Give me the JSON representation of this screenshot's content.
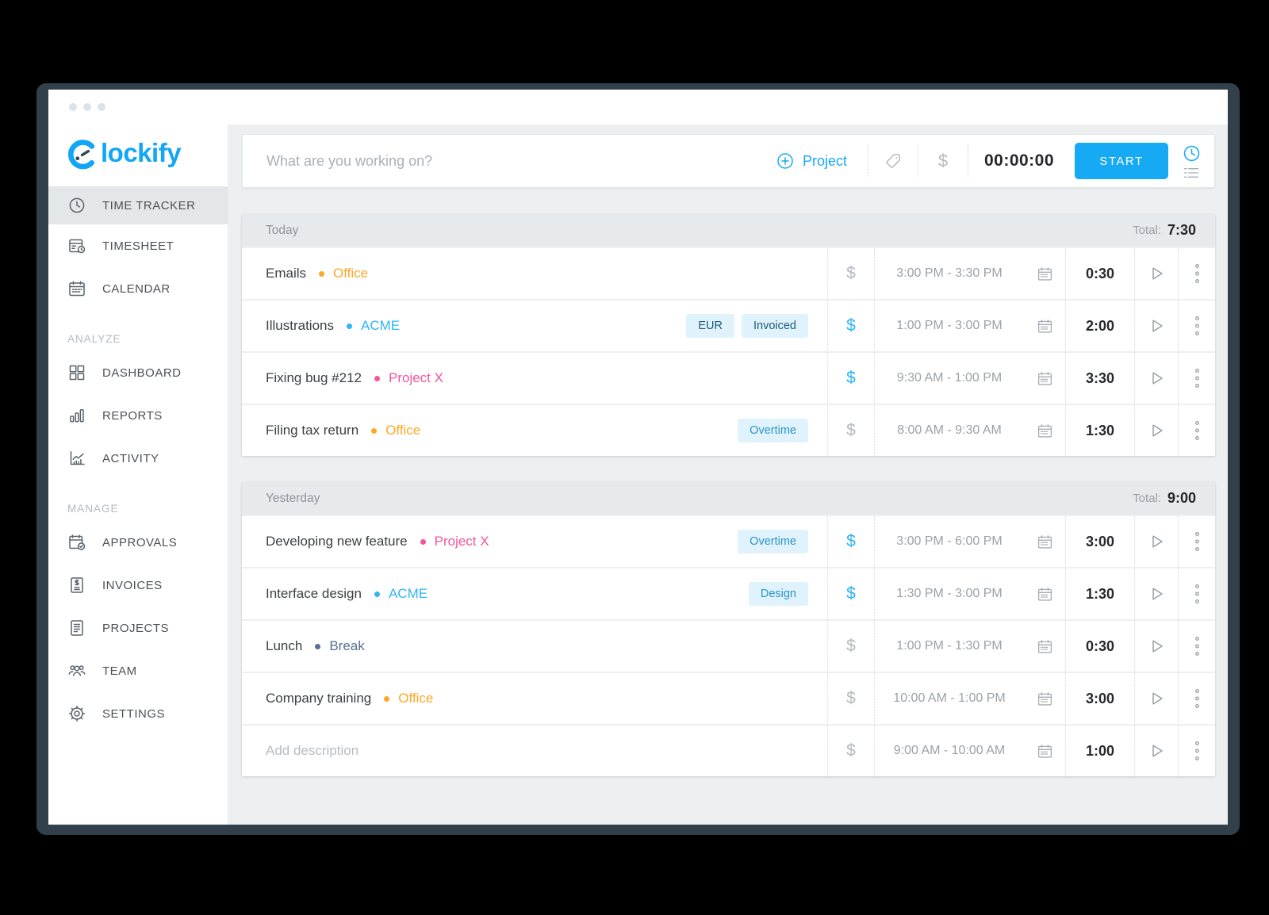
{
  "window": {
    "title_dots_count": 3
  },
  "sidebar": {
    "logo_text": "lockify",
    "primary_items": [
      {
        "icon": "clock-icon",
        "label": "TIME TRACKER",
        "active": true
      },
      {
        "icon": "timesheet-icon",
        "label": "TIMESHEET",
        "active": false
      },
      {
        "icon": "calendar-icon",
        "label": "CALENDAR",
        "active": false
      }
    ],
    "groups": [
      {
        "label": "ANALYZE",
        "items": [
          {
            "icon": "dashboard-icon",
            "label": "DASHBOARD"
          },
          {
            "icon": "reports-icon",
            "label": "REPORTS"
          },
          {
            "icon": "activity-icon",
            "label": "ACTIVITY"
          }
        ]
      },
      {
        "label": "MANAGE",
        "items": [
          {
            "icon": "approvals-icon",
            "label": "APPROVALS"
          },
          {
            "icon": "invoices-icon",
            "label": "INVOICES"
          },
          {
            "icon": "projects-icon",
            "label": "PROJECTS"
          },
          {
            "icon": "team-icon",
            "label": "TEAM"
          },
          {
            "icon": "settings-icon",
            "label": "SETTINGS"
          }
        ]
      }
    ]
  },
  "tracker_bar": {
    "placeholder": "What are you working on?",
    "project_label": "Project",
    "billable_symbol": "$",
    "timer": "00:00:00",
    "start_label": "START"
  },
  "entry_groups": [
    {
      "title": "Today",
      "total_label": "Total:",
      "total": "7:30",
      "entries": [
        {
          "description": "Emails",
          "project": "Office",
          "project_color": "#FFA726",
          "badges": [],
          "billable": false,
          "time_range": "3:00 PM - 3:30 PM",
          "duration": "0:30"
        },
        {
          "description": "Illustrations",
          "project": "ACME",
          "project_color": "#30B5F6",
          "badges": [
            {
              "label": "EUR",
              "text_color": "#1D5A78"
            },
            {
              "label": "Invoiced",
              "text_color": "#1D5A78"
            }
          ],
          "billable": true,
          "time_range": "1:00 PM - 3:00 PM",
          "duration": "2:00"
        },
        {
          "description": "Fixing bug #212",
          "project": "Project X",
          "project_color": "#F4549D",
          "badges": [],
          "billable": true,
          "time_range": "9:30 AM - 1:00 PM",
          "duration": "3:30"
        },
        {
          "description": "Filing tax return",
          "project": "Office",
          "project_color": "#FFA726",
          "badges": [
            {
              "label": "Overtime",
              "text_color": "#2A93C8"
            }
          ],
          "billable": false,
          "time_range": "8:00 AM - 9:30 AM",
          "duration": "1:30"
        }
      ]
    },
    {
      "title": "Yesterday",
      "total_label": "Total:",
      "total": "9:00",
      "entries": [
        {
          "description": "Developing new feature",
          "project": "Project X",
          "project_color": "#F4549D",
          "badges": [
            {
              "label": "Overtime",
              "text_color": "#2A93C8"
            }
          ],
          "billable": true,
          "time_range": "3:00 PM - 6:00 PM",
          "duration": "3:00"
        },
        {
          "description": "Interface design",
          "project": "ACME",
          "project_color": "#30B5F6",
          "badges": [
            {
              "label": "Design",
              "text_color": "#2A93C8"
            }
          ],
          "billable": true,
          "time_range": "1:30 PM - 3:00 PM",
          "duration": "1:30"
        },
        {
          "description": "Lunch",
          "project": "Break",
          "project_color": "#54708C",
          "badges": [],
          "billable": false,
          "time_range": "1:00 PM - 1:30 PM",
          "duration": "0:30"
        },
        {
          "description": "Company training",
          "project": "Office",
          "project_color": "#FFA726",
          "badges": [],
          "billable": false,
          "time_range": "10:00 AM - 1:00 PM",
          "duration": "3:00"
        },
        {
          "description": "",
          "description_placeholder": "Add description",
          "project": "",
          "project_color": "",
          "badges": [],
          "billable": false,
          "time_range": "9:00 AM - 10:00 AM",
          "duration": "1:00"
        }
      ]
    }
  ],
  "colors": {
    "accent_blue": "#12A7F4",
    "billable_active": "#2CB4F5",
    "billable_inactive": "#B3BAC0",
    "badge_bg": "#E0F3FC",
    "frame": "#31404A",
    "main_bg": "#EDEFF1"
  }
}
